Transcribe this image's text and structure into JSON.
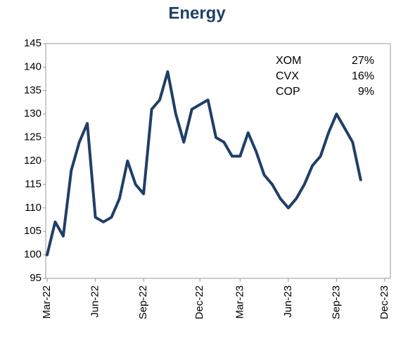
{
  "chart_data": {
    "type": "line",
    "title": "Energy",
    "categories": [
      "Mar-22",
      null,
      null,
      null,
      null,
      null,
      "Jun-22",
      null,
      null,
      null,
      null,
      null,
      "Sep-22",
      null,
      null,
      null,
      null,
      null,
      null,
      "Dec-22",
      null,
      null,
      null,
      null,
      "Mar-23",
      null,
      null,
      null,
      null,
      null,
      "Jun-23",
      null,
      null,
      null,
      null,
      null,
      "Sep-23",
      null,
      null,
      null,
      null,
      null,
      "Dec-23"
    ],
    "series": [
      {
        "name": null,
        "color": "#1f3f66",
        "values": [
          100,
          107,
          104,
          118,
          124,
          128,
          108,
          107,
          108,
          112,
          120,
          115,
          113,
          131,
          133,
          139,
          130,
          124,
          131,
          132,
          133,
          125,
          124,
          121,
          121,
          126,
          122,
          117,
          115,
          112,
          110,
          112,
          115,
          119,
          121,
          126,
          130,
          127,
          124,
          116,
          null,
          null,
          null
        ]
      }
    ],
    "ylim": [
      95,
      145
    ],
    "yticks": [
      95,
      100,
      105,
      110,
      115,
      120,
      125,
      130,
      135,
      140,
      145
    ],
    "grid": false,
    "annotations": [
      [
        "XOM",
        "27%"
      ],
      [
        "CVX",
        "16%"
      ],
      [
        "COP",
        "9%"
      ]
    ]
  }
}
